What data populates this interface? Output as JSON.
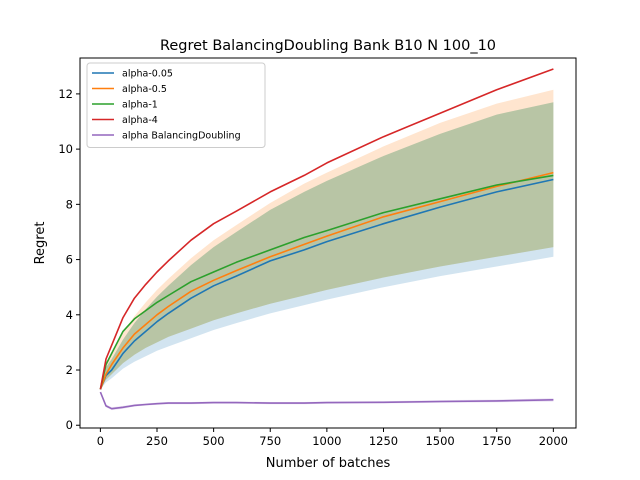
{
  "chart_data": {
    "type": "line",
    "title": "Regret BalancingDoubling Bank B10 N 100_10",
    "xlabel": "Number of batches",
    "ylabel": "Regret",
    "xlim": [
      -90,
      2100
    ],
    "ylim": [
      -0.1,
      13.3
    ],
    "xticks": [
      0,
      250,
      500,
      750,
      1000,
      1250,
      1500,
      1750,
      2000
    ],
    "yticks": [
      0,
      2,
      4,
      6,
      8,
      10,
      12
    ],
    "grid": false,
    "legend_position": "top-left",
    "x": [
      0,
      25,
      50,
      100,
      150,
      200,
      250,
      300,
      400,
      500,
      600,
      750,
      900,
      1000,
      1250,
      1500,
      1750,
      2000
    ],
    "series": [
      {
        "name": "alpha-0.05",
        "color": "#1f77b4",
        "values": [
          1.3,
          1.8,
          2.0,
          2.6,
          3.05,
          3.4,
          3.75,
          4.05,
          4.6,
          5.05,
          5.4,
          5.95,
          6.35,
          6.65,
          7.3,
          7.9,
          8.45,
          8.9
        ],
        "band_lower": [
          1.3,
          1.55,
          1.7,
          2.05,
          2.3,
          2.5,
          2.7,
          2.85,
          3.15,
          3.45,
          3.7,
          4.05,
          4.35,
          4.55,
          5.0,
          5.4,
          5.75,
          6.1
        ],
        "band_upper": [
          1.3,
          2.1,
          2.4,
          3.1,
          3.7,
          4.2,
          4.65,
          5.05,
          5.8,
          6.45,
          7.0,
          7.8,
          8.45,
          8.85,
          9.75,
          10.55,
          11.25,
          11.7
        ]
      },
      {
        "name": "alpha-0.5",
        "color": "#ff7f0e",
        "values": [
          1.3,
          1.85,
          2.2,
          2.8,
          3.3,
          3.65,
          4.0,
          4.3,
          4.85,
          5.25,
          5.6,
          6.1,
          6.55,
          6.85,
          7.55,
          8.1,
          8.65,
          9.15
        ],
        "band_lower": [
          1.3,
          1.65,
          1.85,
          2.25,
          2.55,
          2.8,
          3.0,
          3.2,
          3.5,
          3.8,
          4.05,
          4.4,
          4.7,
          4.9,
          5.35,
          5.75,
          6.1,
          6.45
        ],
        "band_upper": [
          1.3,
          2.15,
          2.55,
          3.35,
          3.95,
          4.45,
          4.9,
          5.3,
          6.05,
          6.7,
          7.25,
          8.05,
          8.75,
          9.15,
          10.1,
          10.95,
          11.65,
          12.15
        ]
      },
      {
        "name": "alpha-1",
        "color": "#2ca02c",
        "values": [
          1.3,
          2.2,
          2.6,
          3.4,
          3.85,
          4.15,
          4.45,
          4.7,
          5.2,
          5.55,
          5.9,
          6.35,
          6.8,
          7.05,
          7.7,
          8.2,
          8.7,
          9.05
        ],
        "band_lower": [
          1.3,
          1.65,
          1.85,
          2.25,
          2.55,
          2.8,
          3.0,
          3.2,
          3.5,
          3.8,
          4.05,
          4.4,
          4.7,
          4.9,
          5.35,
          5.75,
          6.1,
          6.45
        ],
        "band_upper": [
          1.3,
          2.1,
          2.4,
          3.1,
          3.7,
          4.2,
          4.65,
          5.05,
          5.8,
          6.45,
          7.0,
          7.8,
          8.45,
          8.85,
          9.75,
          10.55,
          11.25,
          11.7
        ]
      },
      {
        "name": "alpha-4",
        "color": "#d62728",
        "values": [
          1.3,
          2.4,
          2.9,
          3.9,
          4.6,
          5.1,
          5.55,
          5.95,
          6.7,
          7.3,
          7.75,
          8.45,
          9.05,
          9.5,
          10.45,
          11.3,
          12.15,
          12.9
        ]
      },
      {
        "name": "alpha BalancingDoubling",
        "color": "#9467bd",
        "values": [
          1.2,
          0.7,
          0.6,
          0.65,
          0.72,
          0.75,
          0.78,
          0.8,
          0.8,
          0.82,
          0.82,
          0.8,
          0.8,
          0.82,
          0.83,
          0.86,
          0.88,
          0.92
        ],
        "band_lower": [
          1.2,
          0.65,
          0.55,
          0.6,
          0.68,
          0.71,
          0.74,
          0.76,
          0.76,
          0.78,
          0.78,
          0.76,
          0.76,
          0.78,
          0.79,
          0.81,
          0.83,
          0.86
        ],
        "band_upper": [
          1.2,
          0.75,
          0.65,
          0.7,
          0.76,
          0.79,
          0.82,
          0.84,
          0.84,
          0.86,
          0.86,
          0.84,
          0.84,
          0.86,
          0.87,
          0.91,
          0.93,
          0.98
        ]
      }
    ]
  }
}
